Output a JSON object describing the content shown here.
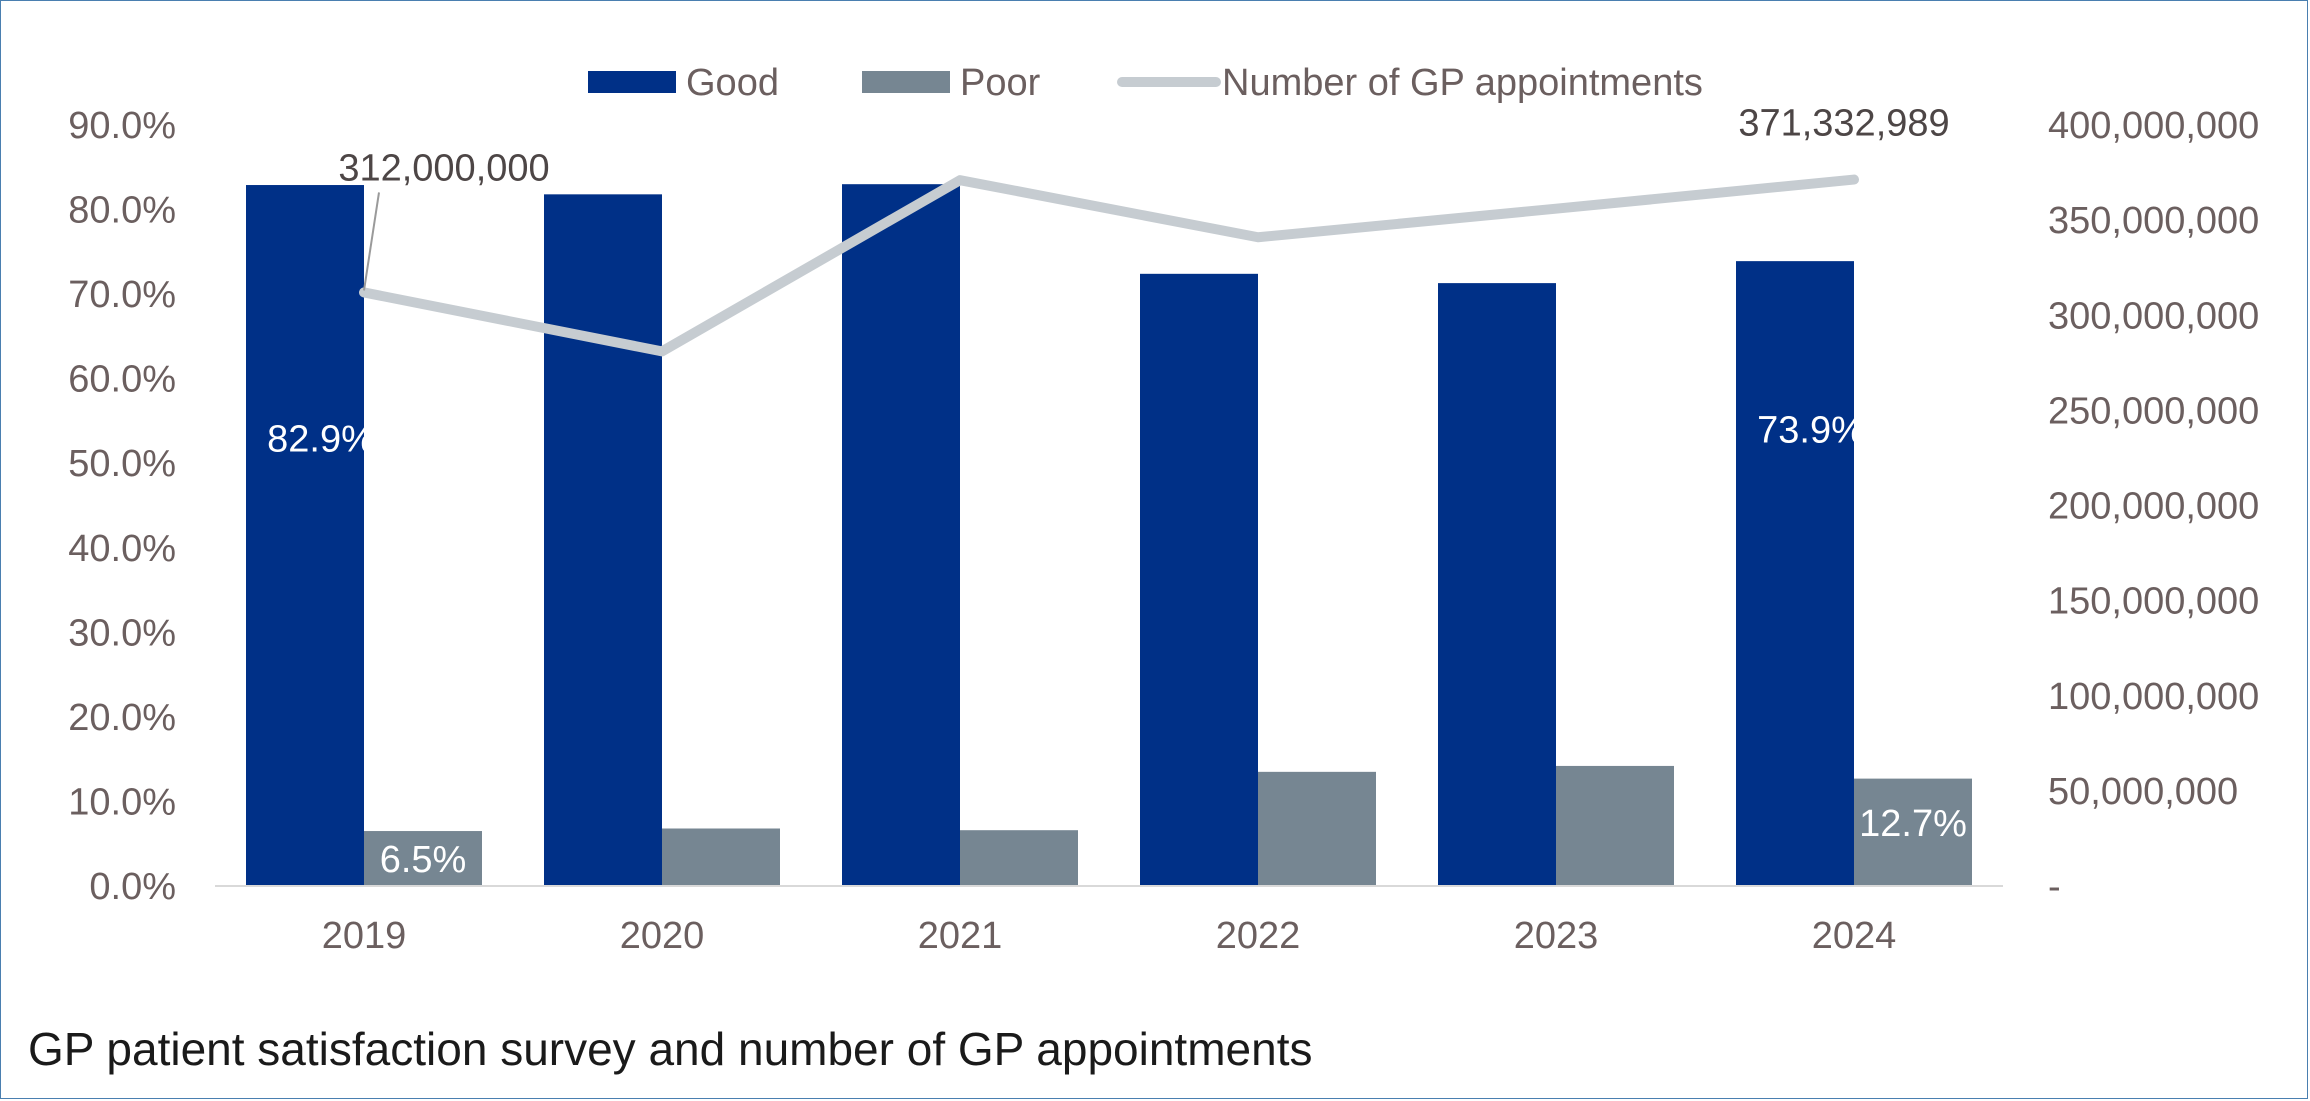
{
  "caption": "GP patient satisfaction survey and number of GP appointments",
  "chart_data": {
    "type": "bar",
    "title": "",
    "categories": [
      "2019",
      "2020",
      "2021",
      "2022",
      "2023",
      "2024"
    ],
    "series": [
      {
        "name": "Good",
        "kind": "bar",
        "axis": "left",
        "color": "#003087",
        "values": [
          82.9,
          81.8,
          83.0,
          72.4,
          71.3,
          73.9
        ]
      },
      {
        "name": "Poor",
        "kind": "bar",
        "axis": "left",
        "color": "#768692",
        "values": [
          6.5,
          6.8,
          6.6,
          13.5,
          14.2,
          12.7
        ]
      },
      {
        "name": "Number of GP appointments",
        "kind": "line",
        "axis": "right",
        "color": "#c6ccd1",
        "values": [
          312000000,
          281000000,
          371000000,
          341000000,
          356000000,
          371332989
        ]
      }
    ],
    "left_axis": {
      "ylim": [
        0,
        90
      ],
      "ticks": [
        "0.0%",
        "10.0%",
        "20.0%",
        "30.0%",
        "40.0%",
        "50.0%",
        "60.0%",
        "70.0%",
        "80.0%",
        "90.0%"
      ]
    },
    "right_axis": {
      "ylim": [
        0,
        400000000
      ],
      "ticks": [
        "-",
        "50,000,000",
        "100,000,000",
        "150,000,000",
        "200,000,000",
        "250,000,000",
        "300,000,000",
        "350,000,000",
        "400,000,000"
      ]
    },
    "data_labels": [
      {
        "series": "Good",
        "index": 0,
        "text": "82.9%"
      },
      {
        "series": "Poor",
        "index": 0,
        "text": "6.5%"
      },
      {
        "series": "Good",
        "index": 5,
        "text": "73.9%"
      },
      {
        "series": "Poor",
        "index": 5,
        "text": "12.7%"
      },
      {
        "series": "Number of GP appointments",
        "index": 0,
        "text": "312,000,000"
      },
      {
        "series": "Number of GP appointments",
        "index": 5,
        "text": "371,332,989"
      }
    ],
    "legend": {
      "position": "top-center",
      "entries": [
        "Good",
        "Poor",
        "Number of GP appointments"
      ]
    },
    "grid": false,
    "colors": {
      "axis_text": "#6b5f5f",
      "baseline": "#d9d9d9",
      "label_dark": "#4d4646",
      "label_light": "#ffffff"
    }
  }
}
